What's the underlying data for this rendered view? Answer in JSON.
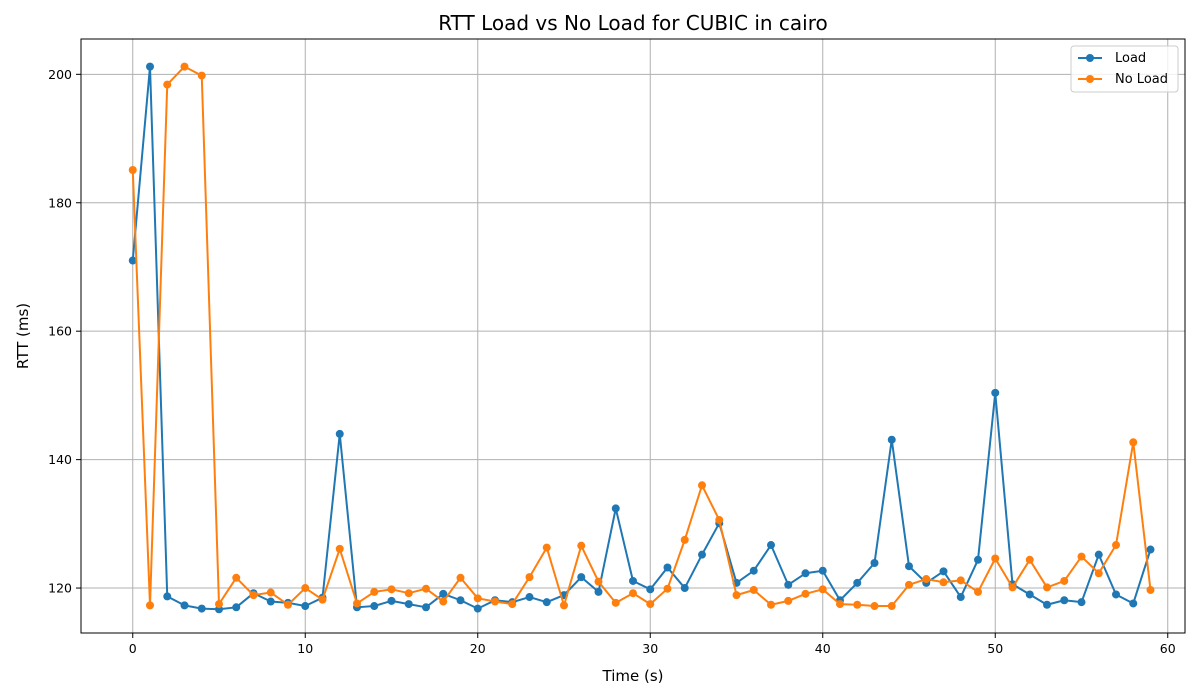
{
  "chart_data": {
    "type": "line",
    "title": "RTT Load vs No Load for CUBIC in cairo",
    "xlabel": "Time (s)",
    "ylabel": "RTT (ms)",
    "xlim": [
      -3,
      61
    ],
    "ylim": [
      113,
      205.5
    ],
    "xticks": [
      0,
      10,
      20,
      30,
      40,
      50,
      60
    ],
    "yticks": [
      120,
      140,
      160,
      180,
      200
    ],
    "grid": true,
    "legend_position": "top-right",
    "x": [
      0,
      1,
      2,
      3,
      4,
      5,
      6,
      7,
      8,
      9,
      10,
      11,
      12,
      13,
      14,
      15,
      16,
      17,
      18,
      19,
      20,
      21,
      22,
      23,
      24,
      25,
      26,
      27,
      28,
      29,
      30,
      31,
      32,
      33,
      34,
      35,
      36,
      37,
      38,
      39,
      40,
      41,
      42,
      43,
      44,
      45,
      46,
      47,
      48,
      49,
      50,
      51,
      52,
      53,
      54,
      55,
      56,
      57,
      58,
      59
    ],
    "series": [
      {
        "name": "Load",
        "color": "#1f77b4",
        "values": [
          171.0,
          201.2,
          118.7,
          117.3,
          116.8,
          116.7,
          117.0,
          119.2,
          117.9,
          117.7,
          117.2,
          118.5,
          144.0,
          117.0,
          117.2,
          118.0,
          117.5,
          117.0,
          119.1,
          118.1,
          116.8,
          118.1,
          117.8,
          118.6,
          117.8,
          118.9,
          121.7,
          119.4,
          132.4,
          121.1,
          119.8,
          123.2,
          120.0,
          125.2,
          130.1,
          120.8,
          122.7,
          126.7,
          120.5,
          122.3,
          122.7,
          118.1,
          120.8,
          123.9,
          143.1,
          123.4,
          120.8,
          122.6,
          118.6,
          124.4,
          150.4,
          120.6,
          119.0,
          117.4,
          118.1,
          117.8,
          125.2,
          119.0,
          117.6,
          126.0
        ]
      },
      {
        "name": "No Load",
        "color": "#ff7f0e",
        "values": [
          185.1,
          117.3,
          198.4,
          201.2,
          199.8,
          117.5,
          121.6,
          118.9,
          119.3,
          117.4,
          120.0,
          118.2,
          126.1,
          117.6,
          119.4,
          119.8,
          119.2,
          119.9,
          117.9,
          121.6,
          118.4,
          117.9,
          117.5,
          121.7,
          126.3,
          117.3,
          126.6,
          121.0,
          117.7,
          119.2,
          117.5,
          119.9,
          127.5,
          136.0,
          130.6,
          118.9,
          119.7,
          117.4,
          118.0,
          119.1,
          119.8,
          117.5,
          117.4,
          117.2,
          117.2,
          120.5,
          121.4,
          120.9,
          121.2,
          119.4,
          124.6,
          120.1,
          124.4,
          120.1,
          121.1,
          124.9,
          122.3,
          126.7,
          142.7,
          119.7
        ]
      }
    ]
  }
}
